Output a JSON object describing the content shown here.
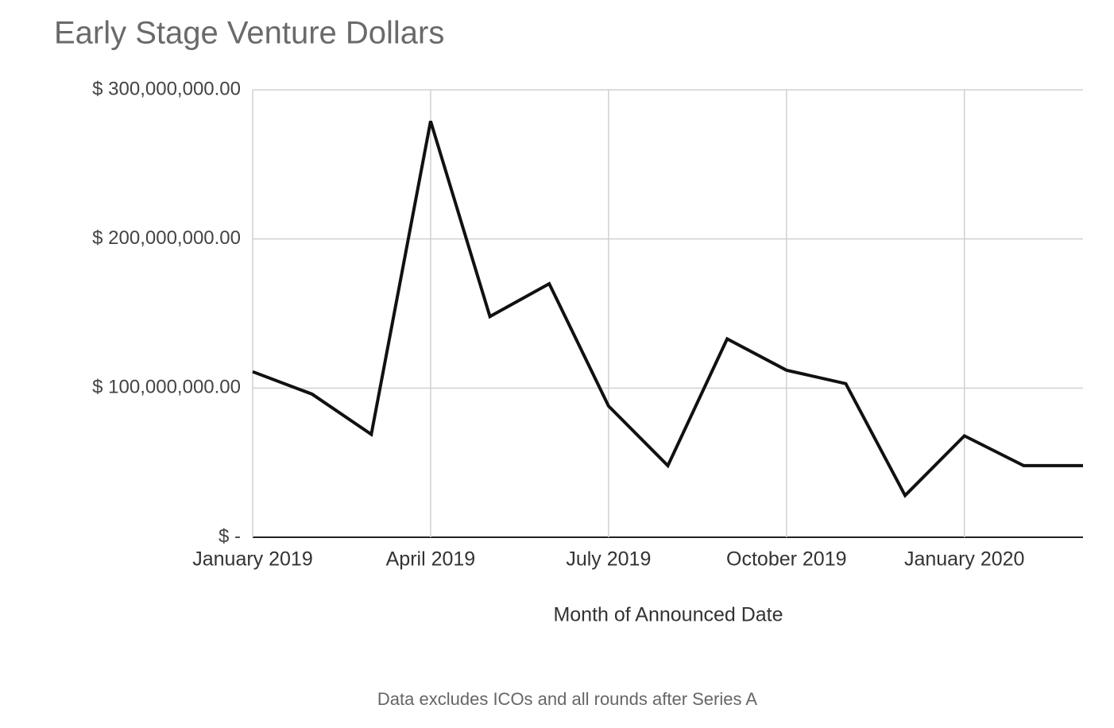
{
  "chart_data": {
    "type": "line",
    "title": "Early Stage Venture Dollars",
    "x_label": "Month of Announced Date",
    "caption": "Data excludes ICOs and all rounds after Series A",
    "categories": [
      "January 2019",
      null,
      null,
      "April 2019",
      null,
      null,
      "July 2019",
      null,
      null,
      "October 2019",
      null,
      null,
      "January 2020",
      null,
      null
    ],
    "series": [
      {
        "name": "Early Stage Venture Dollars",
        "color": "#111111",
        "values": [
          111000000,
          96000000,
          69000000,
          279000000,
          148000000,
          170000000,
          88000000,
          48000000,
          133000000,
          112000000,
          103000000,
          28000000,
          68000000,
          48000000,
          48000000
        ]
      }
    ],
    "ylim": [
      0,
      300000000
    ],
    "yticks": [
      {
        "value": 0,
        "label": "$ -"
      },
      {
        "value": 100000000,
        "label": "$ 100,000,000.00"
      },
      {
        "value": 200000000,
        "label": "$ 200,000,000.00"
      },
      {
        "value": 300000000,
        "label": "$ 300,000,000.00"
      }
    ],
    "grid": true
  }
}
